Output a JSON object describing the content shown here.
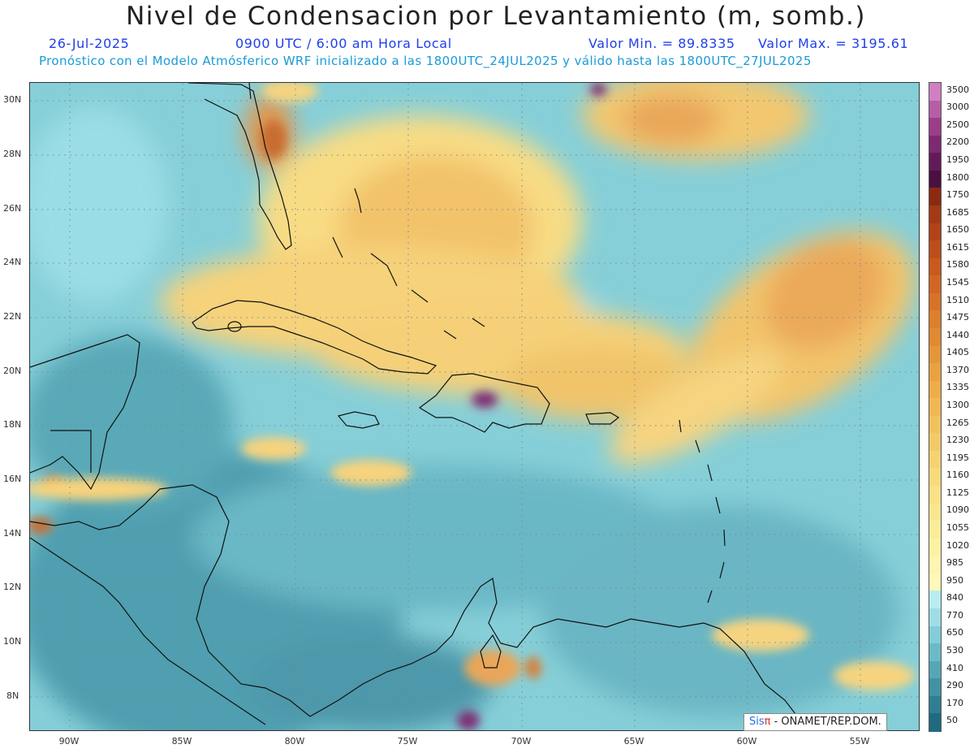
{
  "title": "Nivel de Condensacion por Levantamiento (m, somb.)",
  "date": "26-Jul-2025",
  "time": "0900 UTC / 6:00 am Hora Local",
  "valmin": "Valor Min. = 89.8335",
  "valmax": "Valor Max. = 3195.61",
  "subtitle": "Pronóstico con el Modelo Atmósferico WRF inicializado a las 1800UTC_24JUL2025 y válido hasta las  1800UTC_27JUL2025",
  "lat_labels": [
    "30N",
    "28N",
    "26N",
    "24N",
    "22N",
    "20N",
    "18N",
    "16N",
    "14N",
    "12N",
    "10N",
    "8N"
  ],
  "lon_labels": [
    "90W",
    "85W",
    "80W",
    "75W",
    "70W",
    "65W",
    "60W",
    "55W"
  ],
  "colorbar": {
    "labels": [
      "3500",
      "3000",
      "2500",
      "2200",
      "1950",
      "1800",
      "1750",
      "1685",
      "1650",
      "1615",
      "1580",
      "1545",
      "1510",
      "1475",
      "1440",
      "1405",
      "1370",
      "1335",
      "1300",
      "1265",
      "1230",
      "1195",
      "1160",
      "1125",
      "1090",
      "1055",
      "1020",
      "985",
      "950",
      "840",
      "770",
      "650",
      "530",
      "410",
      "290",
      "170",
      "50"
    ],
    "colors": [
      "#cf7fc2",
      "#b55ea6",
      "#9b3e8a",
      "#7d2a72",
      "#621b58",
      "#4a1040",
      "#8b2a10",
      "#a23a14",
      "#b04318",
      "#bd4e1c",
      "#c85a20",
      "#d06624",
      "#d67328",
      "#dc7f2e",
      "#e08a34",
      "#e4963a",
      "#e8a242",
      "#ecad4a",
      "#efb854",
      "#f1c15e",
      "#f4ca68",
      "#f6d272",
      "#f8da7c",
      "#fae086",
      "#fbe690",
      "#fcec9a",
      "#fdf1a4",
      "#fef5ae",
      "#fff8b8",
      "#b8ecf0",
      "#9edde6",
      "#84ccd8",
      "#6cbac8",
      "#56a6b6",
      "#4292a4",
      "#307e92",
      "#1f6a80"
    ]
  },
  "credit": {
    "sis": "Sis",
    "pi": "π",
    "rest": " - ONAMET/REP.DOM."
  },
  "map": {
    "lon_range": [
      -92,
      -53
    ],
    "lat_range": [
      6.5,
      30.8
    ],
    "projection": "cylindrical"
  }
}
